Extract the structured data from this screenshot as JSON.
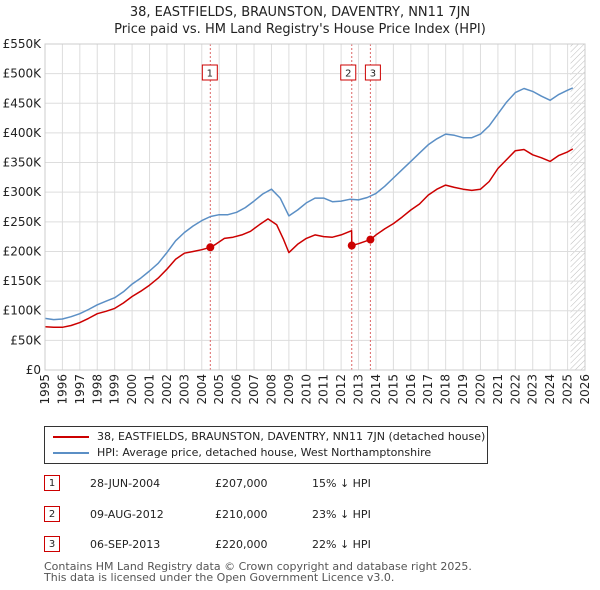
{
  "chart_data": {
    "type": "line",
    "title": "38, EASTFIELDS, BRAUNSTON, DAVENTRY, NN11 7JN",
    "subtitle": "Price paid vs. HM Land Registry's House Price Index (HPI)",
    "xlabel": "",
    "ylabel": "",
    "xlim": [
      1995,
      2026
    ],
    "ylim": [
      0,
      550000
    ],
    "x_ticks": [
      1995,
      1996,
      1997,
      1998,
      1999,
      2000,
      2001,
      2002,
      2003,
      2004,
      2005,
      2006,
      2007,
      2008,
      2009,
      2010,
      2011,
      2012,
      2013,
      2014,
      2015,
      2016,
      2017,
      2018,
      2019,
      2020,
      2021,
      2022,
      2023,
      2024,
      2025,
      2026
    ],
    "x_tick_labels": [
      "1995",
      "1996",
      "1997",
      "1998",
      "1999",
      "2000",
      "2001",
      "2002",
      "2003",
      "2004",
      "2005",
      "2006",
      "2007",
      "2008",
      "2009",
      "2010",
      "2011",
      "2012",
      "2013",
      "2014",
      "2015",
      "2016",
      "2017",
      "2018",
      "2019",
      "2020",
      "2021",
      "2022",
      "2023",
      "2024",
      "2025",
      "2026"
    ],
    "y_ticks": [
      0,
      50000,
      100000,
      150000,
      200000,
      250000,
      300000,
      350000,
      400000,
      450000,
      500000,
      550000
    ],
    "y_tick_labels": [
      "£0",
      "£50K",
      "£100K",
      "£150K",
      "£200K",
      "£250K",
      "£300K",
      "£350K",
      "£400K",
      "£450K",
      "£500K",
      "£550K"
    ],
    "grid": true,
    "hatched_after": 2025.17,
    "series": [
      {
        "name": "38, EASTFIELDS, BRAUNSTON, DAVENTRY, NN11 7JN (detached house)",
        "color": "#cc0000",
        "x": [
          1995,
          1995.5,
          1996,
          1996.5,
          1997,
          1997.5,
          1998,
          1998.5,
          1999,
          1999.5,
          2000,
          2000.5,
          2001,
          2001.5,
          2002,
          2002.5,
          2003,
          2003.5,
          2004,
          2004.49,
          2004.8,
          2005.3,
          2005.8,
          2006.3,
          2006.8,
          2007.3,
          2007.8,
          2008.3,
          2008.7,
          2009.0,
          2009.5,
          2010,
          2010.5,
          2011,
          2011.5,
          2012,
          2012.6,
          2012.61,
          2013.0,
          2013.68,
          2014,
          2014.5,
          2015,
          2015.5,
          2016,
          2016.5,
          2017,
          2017.5,
          2018,
          2018.5,
          2019,
          2019.5,
          2020,
          2020.5,
          2021,
          2021.5,
          2022,
          2022.5,
          2023,
          2023.5,
          2024,
          2024.5,
          2025,
          2025.3
        ],
        "y": [
          73000,
          72000,
          72000,
          75000,
          80000,
          87000,
          95000,
          99000,
          104000,
          113000,
          124000,
          133000,
          143000,
          155000,
          170000,
          187000,
          197000,
          200000,
          203000,
          207000,
          212000,
          222000,
          224000,
          228000,
          234000,
          245000,
          255000,
          245000,
          220000,
          198000,
          212000,
          222000,
          228000,
          225000,
          224000,
          228000,
          235000,
          210000,
          213000,
          220000,
          228000,
          238000,
          247000,
          258000,
          270000,
          280000,
          295000,
          305000,
          312000,
          308000,
          305000,
          303000,
          305000,
          318000,
          340000,
          355000,
          370000,
          372000,
          363000,
          358000,
          352000,
          362000,
          368000,
          373000
        ]
      },
      {
        "name": "HPI: Average price, detached house, West Northamptonshire",
        "color": "#5b8fc5",
        "x": [
          1995,
          1995.5,
          1996,
          1996.5,
          1997,
          1997.5,
          1998,
          1998.5,
          1999,
          1999.5,
          2000,
          2000.5,
          2001,
          2001.5,
          2002,
          2002.5,
          2003,
          2003.5,
          2004,
          2004.5,
          2005,
          2005.5,
          2006,
          2006.5,
          2007,
          2007.5,
          2008,
          2008.5,
          2009,
          2009.5,
          2010,
          2010.5,
          2011,
          2011.5,
          2012,
          2012.5,
          2013,
          2013.5,
          2014,
          2014.5,
          2015,
          2015.5,
          2016,
          2016.5,
          2017,
          2017.5,
          2018,
          2018.5,
          2019,
          2019.5,
          2020,
          2020.5,
          2021,
          2021.5,
          2022,
          2022.5,
          2023,
          2023.5,
          2024,
          2024.5,
          2025,
          2025.3
        ],
        "y": [
          87000,
          85000,
          86000,
          90000,
          95000,
          102000,
          110000,
          116000,
          122000,
          132000,
          145000,
          155000,
          167000,
          180000,
          198000,
          218000,
          232000,
          243000,
          252000,
          259000,
          262000,
          262000,
          266000,
          274000,
          285000,
          297000,
          305000,
          290000,
          260000,
          270000,
          282000,
          290000,
          290000,
          284000,
          285000,
          288000,
          287000,
          291000,
          298000,
          310000,
          324000,
          338000,
          352000,
          366000,
          380000,
          390000,
          398000,
          396000,
          392000,
          392000,
          398000,
          412000,
          432000,
          452000,
          468000,
          475000,
          470000,
          462000,
          455000,
          465000,
          472000,
          476000
        ]
      }
    ],
    "sales": [
      {
        "label": "1",
        "x": 2004.49,
        "y": 207000
      },
      {
        "label": "2",
        "x": 2012.61,
        "y": 210000
      },
      {
        "label": "3",
        "x": 2013.68,
        "y": 220000
      }
    ]
  },
  "legend": {
    "property_label": "38, EASTFIELDS, BRAUNSTON, DAVENTRY, NN11 7JN (detached house)",
    "hpi_label": "HPI: Average price, detached house, West Northamptonshire",
    "property_color": "#cc0000",
    "hpi_color": "#5b8fc5"
  },
  "transactions": [
    {
      "num": "1",
      "date": "28-JUN-2004",
      "price": "£207,000",
      "hpi": "15% ↓ HPI"
    },
    {
      "num": "2",
      "date": "09-AUG-2012",
      "price": "£210,000",
      "hpi": "23% ↓ HPI"
    },
    {
      "num": "3",
      "date": "06-SEP-2013",
      "price": "£220,000",
      "hpi": "22% ↓ HPI"
    }
  ],
  "footer": {
    "line1": "Contains HM Land Registry data © Crown copyright and database right 2025.",
    "line2": "This data is licensed under the Open Government Licence v3.0."
  }
}
